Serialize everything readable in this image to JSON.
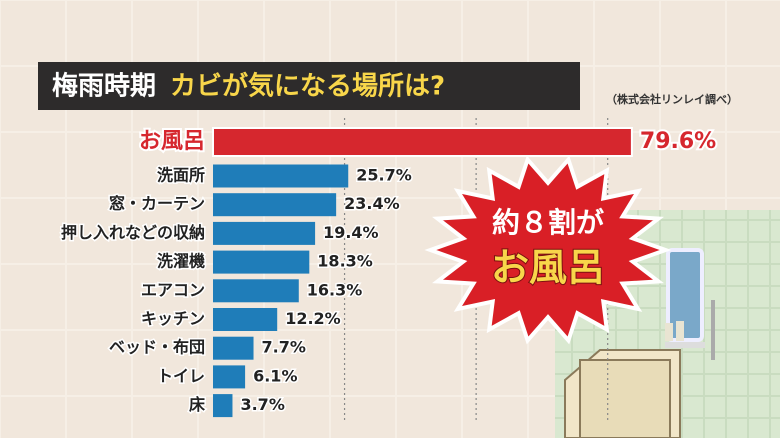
{
  "chart_data": {
    "type": "bar",
    "orientation": "horizontal",
    "title": "梅雨時期",
    "subtitle": "カビが気になる場所は?",
    "source": "（株式会社リンレイ調べ）",
    "categories": [
      "お風呂",
      "洗面所",
      "窓・カーテン",
      "押し入れなどの収納",
      "洗濯機",
      "エアコン",
      "キッチン",
      "ベッド・布団",
      "トイレ",
      "床"
    ],
    "values": [
      79.6,
      25.7,
      23.4,
      19.4,
      18.3,
      16.3,
      12.2,
      7.7,
      6.1,
      3.7
    ],
    "value_labels": [
      "79.6%",
      "25.7%",
      "23.4%",
      "19.4%",
      "18.3%",
      "16.3%",
      "12.2%",
      "7.7%",
      "6.1%",
      "3.7%"
    ],
    "color": "#1f7db9",
    "highlight": {
      "index": 0,
      "color": "#d6272e"
    },
    "xlim": [
      0,
      80
    ],
    "xgrid": [
      25,
      50,
      75
    ],
    "callout": [
      "約８割が",
      "お風呂"
    ]
  }
}
